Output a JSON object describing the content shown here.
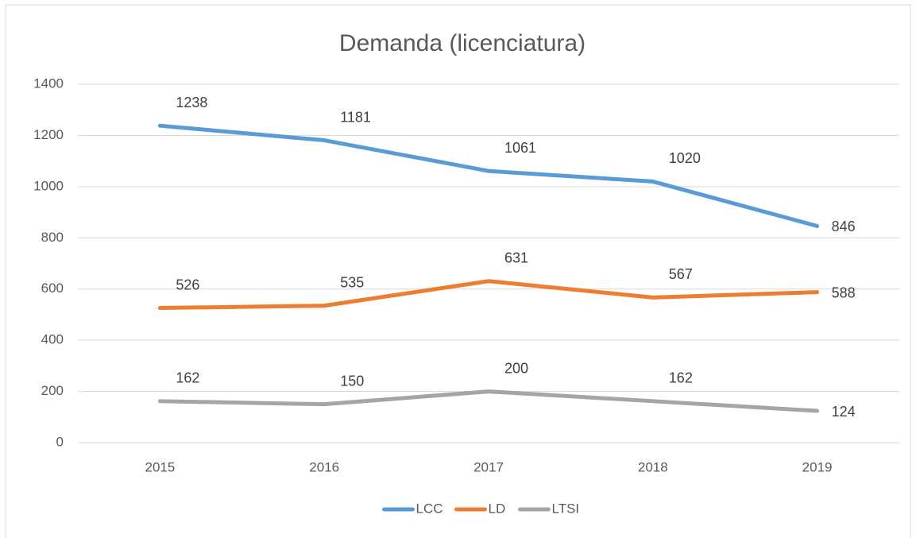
{
  "chart_data": {
    "type": "line",
    "title": "Demanda (licenciatura)",
    "categories": [
      "2015",
      "2016",
      "2017",
      "2018",
      "2019"
    ],
    "series": [
      {
        "name": "LCC",
        "color": "#5b9bd5",
        "values": [
          1238,
          1181,
          1061,
          1020,
          846
        ]
      },
      {
        "name": "LD",
        "color": "#ed7d31",
        "values": [
          526,
          535,
          631,
          567,
          588
        ]
      },
      {
        "name": "LTSI",
        "color": "#a5a5a5",
        "values": [
          162,
          150,
          200,
          162,
          124
        ]
      }
    ],
    "ylim": [
      0,
      1400
    ],
    "yticks": [
      0,
      200,
      400,
      600,
      800,
      1000,
      1200,
      1400
    ],
    "grid": true,
    "legend": "bottom"
  }
}
